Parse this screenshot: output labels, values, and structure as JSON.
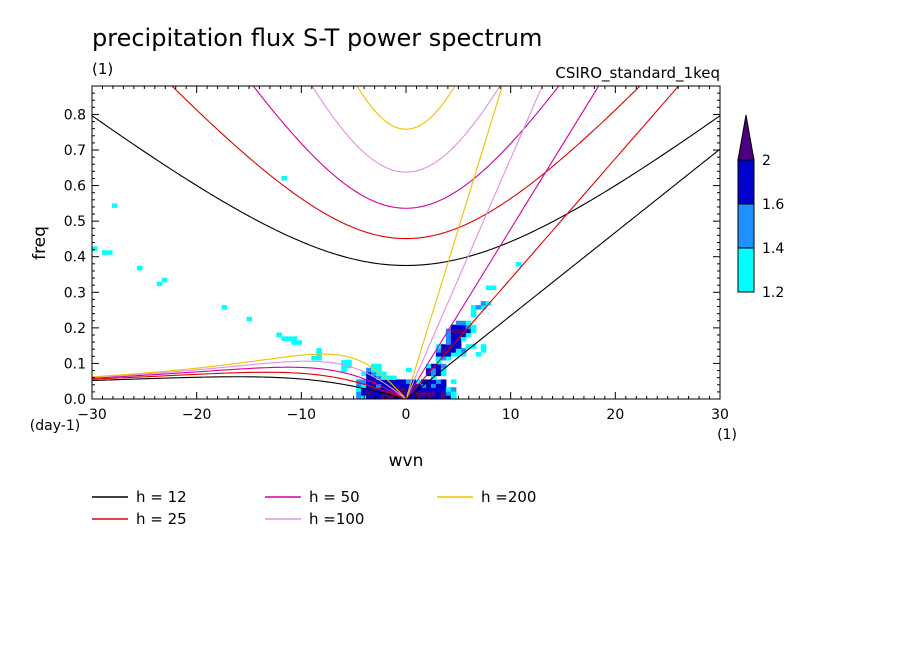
{
  "chart_data": {
    "type": "heatmap",
    "title": "precipitation flux S-T power spectrum",
    "title_unit": "(1)",
    "dataset": "CSIRO_standard_1keq",
    "xlabel": "wvn",
    "xunit": "(1)",
    "ylabel": "freq",
    "yunit": "(day-1)",
    "xlim": [
      -30,
      30
    ],
    "ylim": [
      0,
      0.88
    ],
    "xticks": [
      -30,
      -20,
      -10,
      0,
      10,
      20,
      30
    ],
    "yticks": [
      0.0,
      0.1,
      0.2,
      0.3,
      0.4,
      0.5,
      0.6,
      0.7,
      0.8
    ],
    "xtick_labels": [
      "-30",
      "-20",
      "-10",
      "0",
      "10",
      "20",
      "30"
    ],
    "ytick_labels": [
      "0.0",
      "0.1",
      "0.2",
      "0.3",
      "0.4",
      "0.5",
      "0.6",
      "0.7",
      "0.8"
    ],
    "colorbar": {
      "levels": [
        "1.2",
        "1.4",
        "1.6",
        "2"
      ],
      "colors": [
        "#00ffff",
        "#1e90ff",
        "#0000cd",
        "#4b0082"
      ]
    },
    "dispersion_curves": [
      {
        "name": "h = 12",
        "h": 12,
        "color": "#000000"
      },
      {
        "name": "h = 25",
        "h": 25,
        "color": "#e00000"
      },
      {
        "name": "h = 50",
        "h": 50,
        "color": "#d000a0"
      },
      {
        "name": "h =100",
        "h": 100,
        "color": "#e090e0"
      },
      {
        "name": "h =200",
        "h": 200,
        "color": "#f0c000"
      }
    ]
  }
}
